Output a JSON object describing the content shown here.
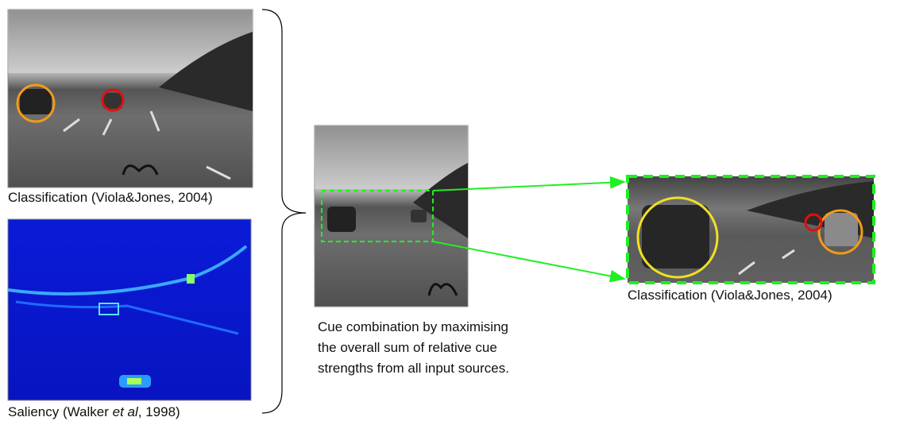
{
  "left_top": {
    "caption": "Classification (Viola&Jones, 2004)"
  },
  "left_bottom": {
    "caption": {
      "before": "Saliency (Walker ",
      "italic": "et al",
      "after": ", 1998)"
    }
  },
  "center": {
    "caption_lines": [
      "Cue combination by maximising",
      "the overall sum of relative cue",
      "strengths from all input sources."
    ]
  },
  "right": {
    "caption": "Classification (Viola&Jones, 2004)"
  }
}
